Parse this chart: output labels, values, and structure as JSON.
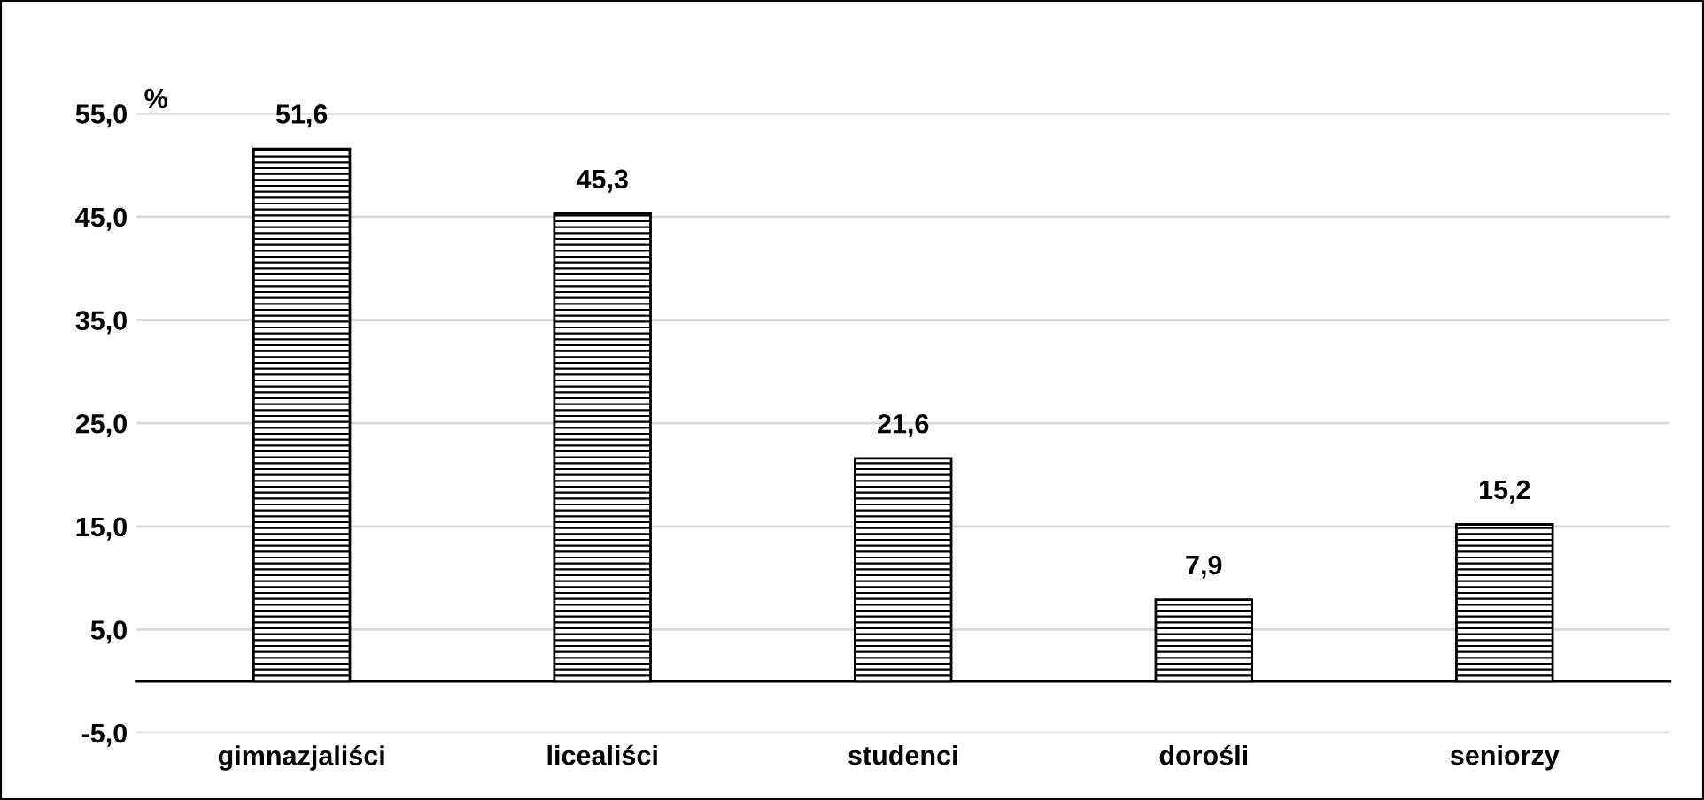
{
  "chart_data": {
    "type": "bar",
    "ylabel": "%",
    "categories": [
      "gimnazjaliści",
      "licealiści",
      "studenci",
      "dorośli",
      "seniorzy"
    ],
    "values": [
      51.6,
      45.3,
      21.6,
      7.9,
      15.2
    ],
    "color": "#000000",
    "value_labels": [
      "51,6",
      "45,3",
      "21,6",
      "7,9",
      "15,2"
    ],
    "ylim": [
      -5,
      55
    ],
    "yticks": [
      {
        "value": -5,
        "label": "-5,0"
      },
      {
        "value": 5,
        "label": "5,0"
      },
      {
        "value": 15,
        "label": "15,0"
      },
      {
        "value": 25,
        "label": "25,0"
      },
      {
        "value": 35,
        "label": "35,0"
      },
      {
        "value": 45,
        "label": "45,0"
      },
      {
        "value": 55,
        "label": "55,0"
      }
    ],
    "grid": "y",
    "legend": false
  }
}
